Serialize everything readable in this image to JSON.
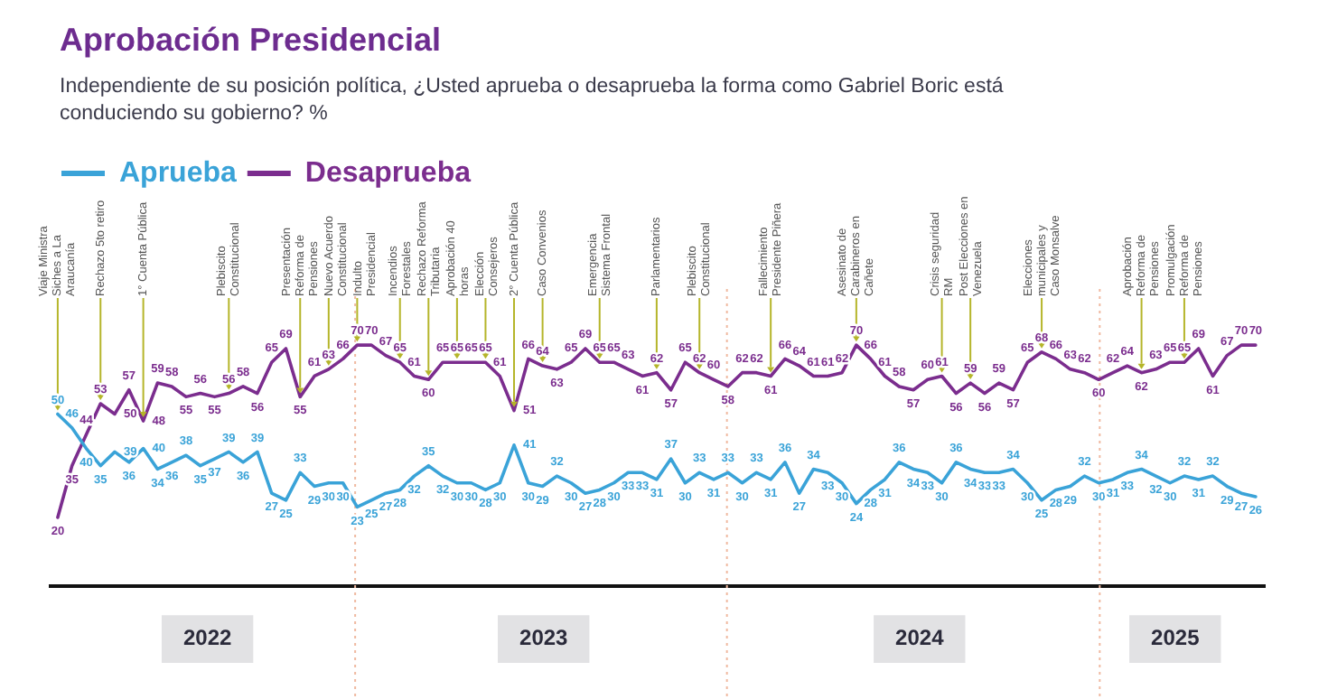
{
  "chart_data": {
    "type": "line",
    "title": "Aprobación Presidencial",
    "subtitle": "Independiente de su posición política, ¿Usted aprueba o desaprueba la forma como Gabriel Boric está conduciendo su gobierno? %",
    "x": [
      "2022-03-15",
      "2022-03-29",
      "2022-04-12",
      "2022-04-26",
      "2022-05-10",
      "2022-05-24",
      "2022-06-07",
      "2022-06-21",
      "2022-07-05",
      "2022-07-19",
      "2022-08-02",
      "2022-08-16",
      "2022-08-30",
      "2022-09-13",
      "2022-09-27",
      "2022-10-11",
      "2022-10-25",
      "2022-11-08",
      "2022-11-22",
      "2022-12-06",
      "2022-12-20",
      "2023-01-03",
      "2023-01-17",
      "2023-01-31",
      "2023-02-14",
      "2023-02-28",
      "2023-03-14",
      "2023-03-28",
      "2023-04-11",
      "2023-04-25",
      "2023-05-09",
      "2023-05-23",
      "2023-06-06",
      "2023-06-20",
      "2023-07-04",
      "2023-07-18",
      "2023-08-01",
      "2023-08-15",
      "2023-08-29",
      "2023-09-12",
      "2023-09-26",
      "2023-10-10",
      "2023-10-24",
      "2023-11-07",
      "2023-11-21",
      "2023-12-05",
      "2023-12-19",
      "2024-01-02",
      "2024-01-16",
      "2024-01-30",
      "2024-02-13",
      "2024-02-27",
      "2024-03-12",
      "2024-03-26",
      "2024-04-09",
      "2024-04-23",
      "2024-05-07",
      "2024-05-21",
      "2024-06-04",
      "2024-06-18",
      "2024-07-02",
      "2024-07-16",
      "2024-07-30",
      "2024-08-13",
      "2024-08-27",
      "2024-09-10",
      "2024-09-24",
      "2024-10-08",
      "2024-10-22",
      "2024-11-05",
      "2024-11-19",
      "2024-12-03",
      "2024-12-17",
      "2024-12-31",
      "2025-01-14",
      "2025-01-28",
      "2025-02-11",
      "2025-02-25",
      "2025-03-11",
      "2025-03-25",
      "2025-04-08",
      "2025-04-22",
      "2025-05-06",
      "2025-05-20",
      "2025-06-03"
    ],
    "series": [
      {
        "name": "Aprueba",
        "color": "#3aa3d8",
        "values": [
          50,
          46,
          40,
          35,
          39,
          36,
          40,
          34,
          36,
          38,
          35,
          37,
          39,
          36,
          39,
          27,
          25,
          33,
          29,
          30,
          30,
          23,
          25,
          27,
          28,
          32,
          35,
          32,
          30,
          30,
          28,
          30,
          41,
          30,
          29,
          32,
          30,
          27,
          28,
          30,
          33,
          33,
          31,
          37,
          30,
          33,
          31,
          33,
          30,
          33,
          31,
          36,
          27,
          34,
          33,
          30,
          24,
          28,
          31,
          36,
          34,
          33,
          30,
          36,
          34,
          33,
          33,
          34,
          30,
          25,
          28,
          29,
          32,
          30,
          31,
          33,
          34,
          32,
          30,
          32,
          31,
          32,
          29,
          27,
          26
        ]
      },
      {
        "name": "Desaprueba",
        "color": "#7b2d8e",
        "values": [
          20,
          35,
          44,
          53,
          50,
          57,
          48,
          59,
          58,
          55,
          56,
          55,
          56,
          58,
          56,
          65,
          69,
          55,
          61,
          63,
          66,
          70,
          70,
          67,
          65,
          61,
          60,
          65,
          65,
          65,
          65,
          61,
          51,
          66,
          64,
          63,
          65,
          69,
          65,
          65,
          63,
          61,
          62,
          57,
          65,
          62,
          60,
          58,
          62,
          62,
          61,
          66,
          64,
          61,
          61,
          62,
          70,
          66,
          61,
          58,
          57,
          60,
          61,
          56,
          59,
          56,
          59,
          57,
          65,
          68,
          66,
          63,
          62,
          60,
          62,
          64,
          62,
          63,
          65,
          65,
          69,
          61,
          67,
          70,
          70
        ]
      }
    ],
    "xlim": [
      "2022-03-08",
      "2025-06-12"
    ],
    "xticks": [
      {
        "value": "2022-08-09",
        "label": "2022"
      },
      {
        "value": "2023-07-05",
        "label": "2023"
      },
      {
        "value": "2024-07-08",
        "label": "2024"
      },
      {
        "value": "2025-03-16",
        "label": "2025"
      }
    ],
    "tick_labels": "x",
    "legend": "top left",
    "data_labels": true,
    "ref_lines": [
      {
        "axis": "x",
        "value": "2023-01-01",
        "color": "#f0b9a0",
        "line_style": "dotted"
      },
      {
        "axis": "x",
        "value": "2024-01-01",
        "color": "#f0b9a0",
        "line_style": "dotted"
      },
      {
        "axis": "x",
        "value": "2025-01-01",
        "color": "#f0b9a0",
        "line_style": "dotted"
      }
    ],
    "annotations": [
      {
        "text": "Viaje Ministra Siches a La Araucanía",
        "x": "2022-03-15",
        "y": 50
      },
      {
        "text": "Rechazo 5to retiro",
        "x": "2022-04-26",
        "y": 53
      },
      {
        "text": "1° Cuenta Pública",
        "x": "2022-06-07",
        "y": 48
      },
      {
        "text": "Plebiscito Constitucional",
        "x": "2022-08-30",
        "y": 56
      },
      {
        "text": "Presentación Reforma de Pensiones",
        "x": "2022-11-08",
        "y": 55
      },
      {
        "text": "Nuevo Acuerdo Constitucional",
        "x": "2022-12-06",
        "y": 63
      },
      {
        "text": "Indulto Presidencial",
        "x": "2023-01-03",
        "y": 70
      },
      {
        "text": "Incendios Forestales",
        "x": "2023-02-14",
        "y": 65
      },
      {
        "text": "Rechazo Reforma Tributaria",
        "x": "2023-03-14",
        "y": 60
      },
      {
        "text": "Aprobación 40 horas",
        "x": "2023-04-11",
        "y": 65
      },
      {
        "text": "Elección Consejeros",
        "x": "2023-05-09",
        "y": 65
      },
      {
        "text": "2° Cuenta Pública",
        "x": "2023-06-06",
        "y": 51
      },
      {
        "text": "Caso Convenios",
        "x": "2023-07-04",
        "y": 64
      },
      {
        "text": "Emergencia Sistema Frontal",
        "x": "2023-08-29",
        "y": 65
      },
      {
        "text": "Parlamentarios",
        "x": "2023-10-24",
        "y": 62
      },
      {
        "text": "Plebiscito Constitucional",
        "x": "2023-12-05",
        "y": 62
      },
      {
        "text": "Fallecimiento Presidente Piñera",
        "x": "2024-02-13",
        "y": 61
      },
      {
        "text": "Asesinato de Carabineros en Cañete",
        "x": "2024-05-07",
        "y": 70
      },
      {
        "text": "Crisis seguridad RM",
        "x": "2024-07-30",
        "y": 61
      },
      {
        "text": "Post Elecciones en Venezuela",
        "x": "2024-08-27",
        "y": 59
      },
      {
        "text": "Elecciones municipales y Caso Monsalve",
        "x": "2024-11-05",
        "y": 68
      },
      {
        "text": "Aprobación Reforma de Pensiones",
        "x": "2025-02-11",
        "y": 62
      },
      {
        "text": "Promulgación Reforma de Pensiones",
        "x": "2025-03-25",
        "y": 65
      }
    ]
  }
}
